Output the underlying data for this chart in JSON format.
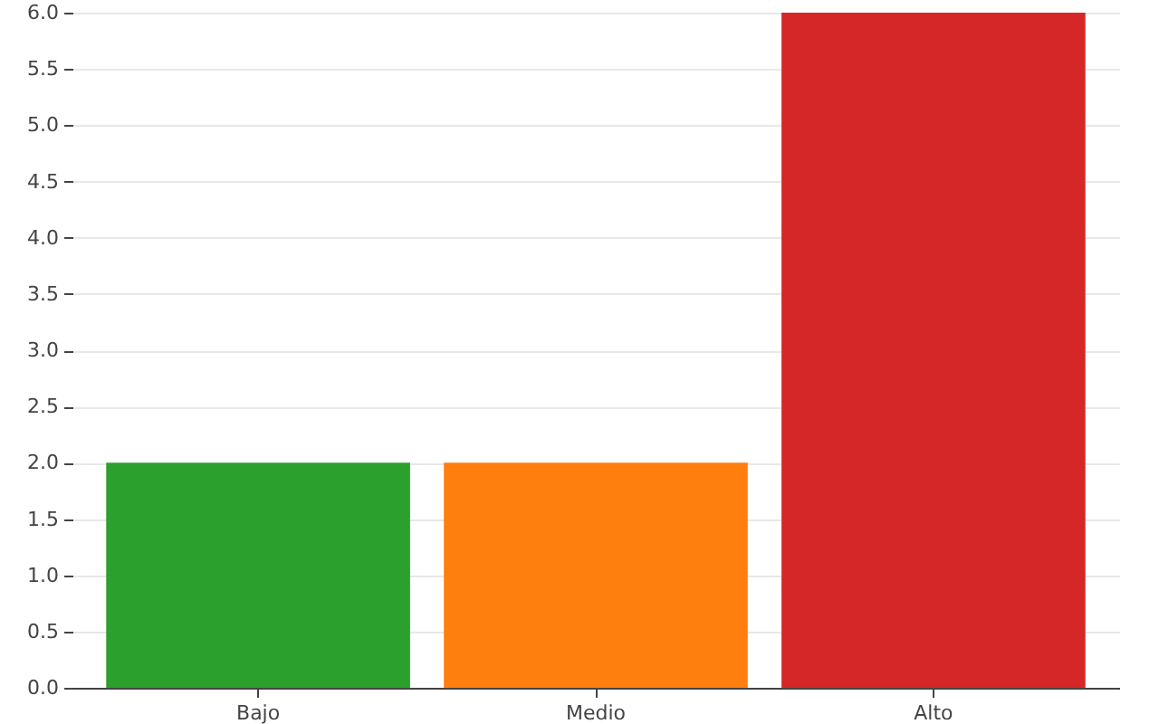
{
  "chart_data": {
    "type": "bar",
    "categories": [
      "Bajo",
      "Medio",
      "Alto"
    ],
    "values": [
      2,
      2,
      6
    ],
    "colors": [
      "#2ca02c",
      "#ff7f0e",
      "#d62728"
    ],
    "ylim": [
      0,
      6
    ],
    "yticks": [
      {
        "value": 0,
        "label": "0.0"
      },
      {
        "value": 0.5,
        "label": "0.5"
      },
      {
        "value": 1,
        "label": "1.0"
      },
      {
        "value": 1.5,
        "label": "1.5"
      },
      {
        "value": 2,
        "label": "2.0"
      },
      {
        "value": 2.5,
        "label": "2.5"
      },
      {
        "value": 3,
        "label": "3.0"
      },
      {
        "value": 3.5,
        "label": "3.5"
      },
      {
        "value": 4,
        "label": "4.0"
      },
      {
        "value": 4.5,
        "label": "4.5"
      },
      {
        "value": 5,
        "label": "5.0"
      },
      {
        "value": 5.5,
        "label": "5.5"
      },
      {
        "value": 6,
        "label": "6.0"
      }
    ],
    "grid": "y"
  }
}
